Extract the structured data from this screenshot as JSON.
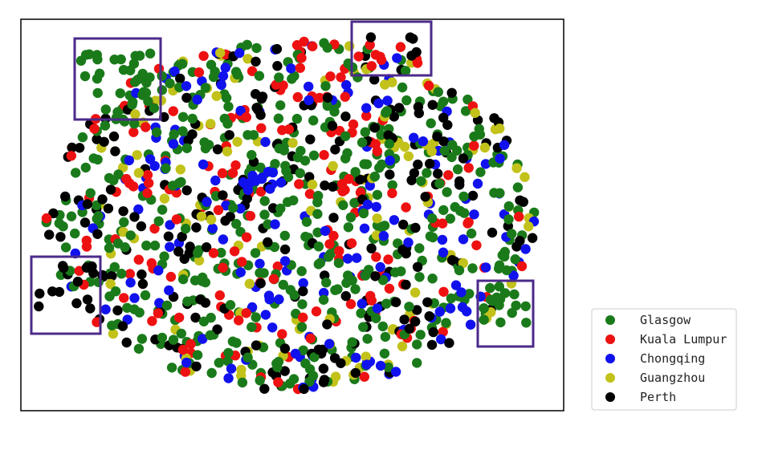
{
  "chart_data": {
    "type": "scatter",
    "title": "",
    "xlabel": "",
    "ylabel": "",
    "axes_ticks": "none",
    "grid": false,
    "legend_position": "right",
    "series": [
      {
        "name": "Glasgow",
        "color": "#1a7a1a"
      },
      {
        "name": "Kuala Lumpur",
        "color": "#ee1111"
      },
      {
        "name": "Chongqing",
        "color": "#1111ee"
      },
      {
        "name": "Guangzhou",
        "color": "#c2c21a"
      },
      {
        "name": "Perth",
        "color": "#000000"
      }
    ],
    "highlight_boxes": [
      {
        "label": "",
        "dominant": "Glasgow"
      },
      {
        "label": "",
        "dominant": "Kuala Lumpur"
      },
      {
        "label": "",
        "dominant": "Perth"
      },
      {
        "label": "",
        "dominant": "Glasgow"
      }
    ],
    "highlight_box_color": "#4b2a8a"
  }
}
